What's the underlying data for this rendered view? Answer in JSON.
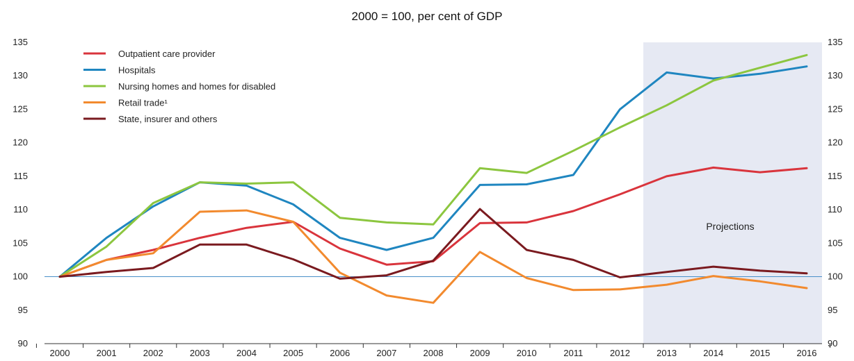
{
  "chart_data": {
    "type": "line",
    "title": "2000 = 100, per cent of GDP",
    "xlabel": "",
    "ylabel": "",
    "x": [
      "2000",
      "2001",
      "2002",
      "2003",
      "2004",
      "2005",
      "2006",
      "2007",
      "2008",
      "2009",
      "2010",
      "2011",
      "2012",
      "2013",
      "2014",
      "2015",
      "2016"
    ],
    "ylim": [
      90,
      135
    ],
    "yticks": [
      90,
      95,
      100,
      105,
      110,
      115,
      120,
      125,
      130,
      135
    ],
    "grid": false,
    "baseline": 100,
    "legend_position": "top-left",
    "shaded_region": {
      "from": "2012.5",
      "to": "2016.5",
      "label": "Projections",
      "color": "#e6e9f3"
    },
    "series": [
      {
        "name": "Outpatient care provider",
        "color": "#d9343c",
        "values": [
          100,
          102.5,
          104,
          105.8,
          107.3,
          108.2,
          104.2,
          101.8,
          102.3,
          108,
          108.1,
          109.8,
          112.3,
          115,
          116.3,
          115.6,
          116.2
        ]
      },
      {
        "name": "Hospitals",
        "color": "#1f86c0",
        "values": [
          100,
          105.8,
          110.5,
          114.1,
          113.6,
          110.8,
          105.8,
          104,
          105.8,
          113.7,
          113.8,
          115.2,
          125,
          130.5,
          129.6,
          130.3,
          131.4
        ]
      },
      {
        "name": "Nursing homes and homes for disabled",
        "color": "#8cc63f",
        "values": [
          100,
          104.5,
          111,
          114.1,
          113.9,
          114.1,
          108.8,
          108.1,
          107.8,
          116.2,
          115.5,
          118.8,
          122.3,
          125.6,
          129.3,
          131.2,
          133.1
        ]
      },
      {
        "name": "Retail trade¹",
        "color": "#f28a2e",
        "values": [
          100,
          102.5,
          103.5,
          109.7,
          109.9,
          108.2,
          100.6,
          97.2,
          96.1,
          103.7,
          99.8,
          98,
          98.1,
          98.8,
          100.1,
          99.3,
          98.3
        ]
      },
      {
        "name": "State, insurer and others",
        "color": "#7a1a1f",
        "values": [
          100,
          100.7,
          101.3,
          104.8,
          104.8,
          102.6,
          99.7,
          100.2,
          102.4,
          110.1,
          104,
          102.5,
          99.9,
          100.7,
          101.5,
          100.9,
          100.5
        ]
      }
    ]
  }
}
